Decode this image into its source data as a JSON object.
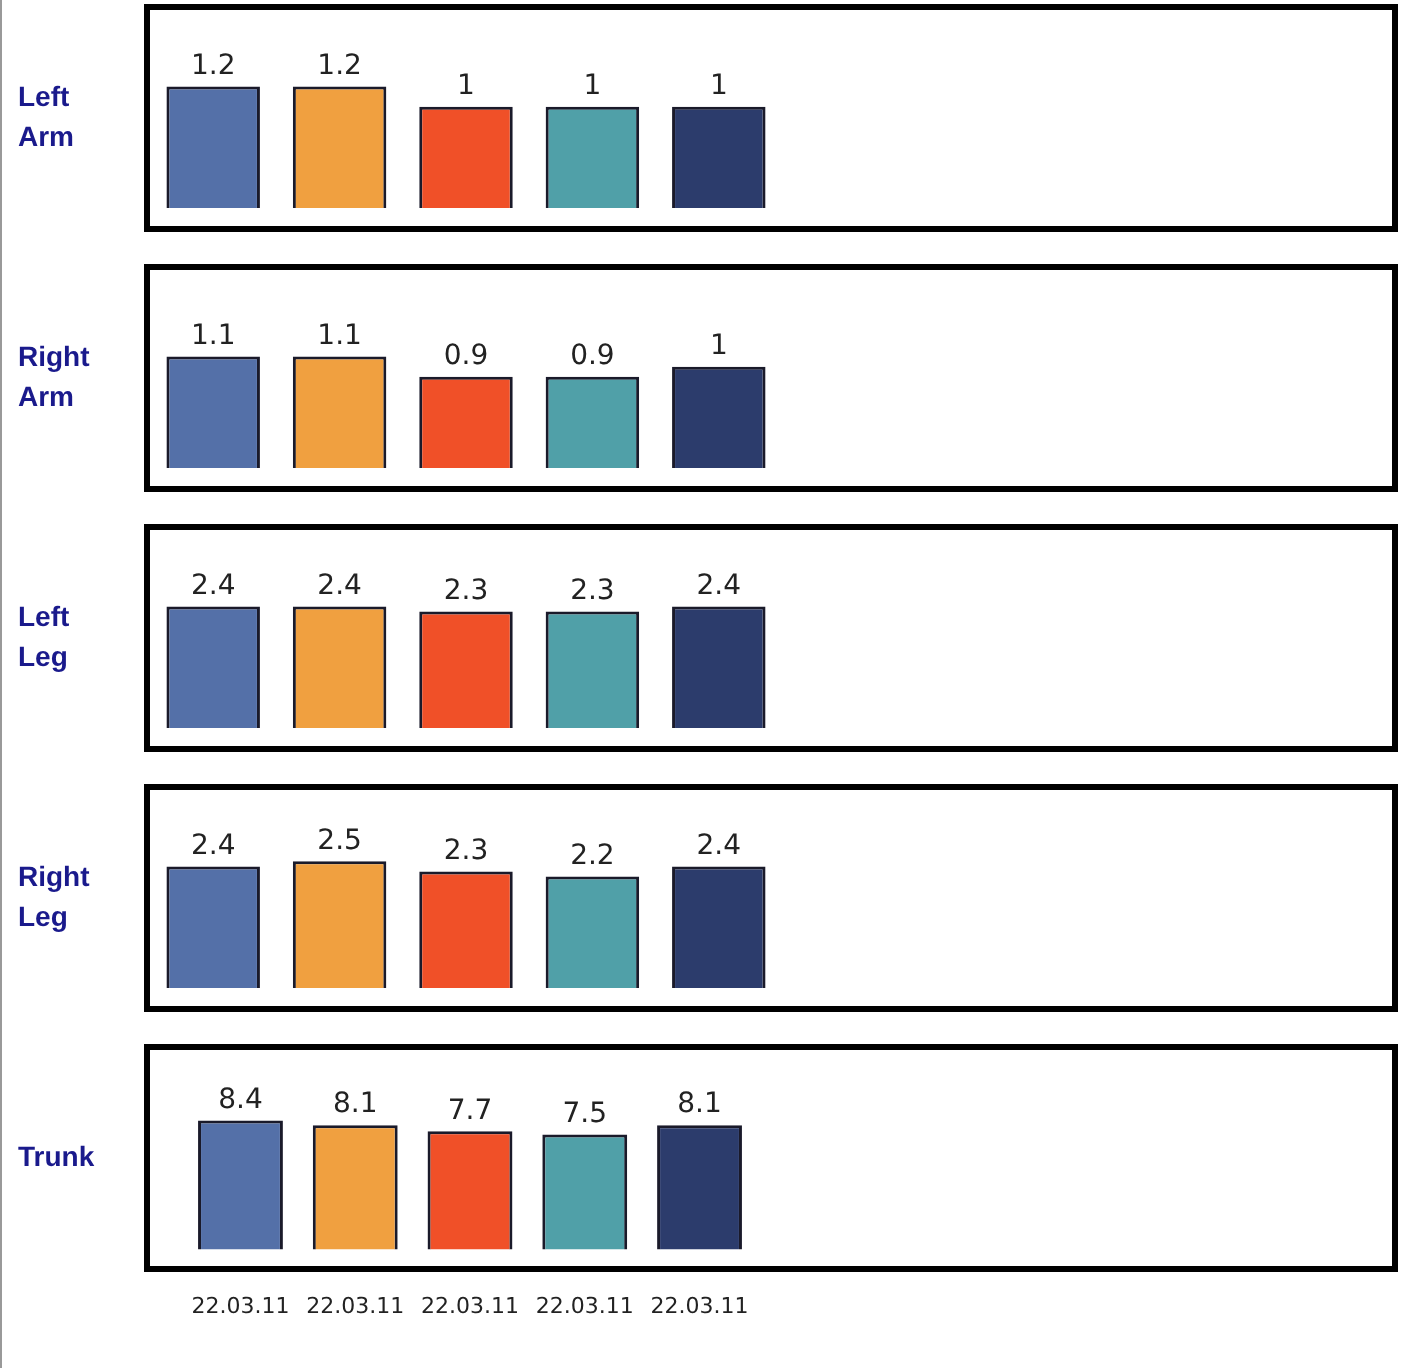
{
  "chart_data": [
    {
      "type": "bar",
      "ylabel": "Left Arm",
      "categories": [
        "22.03.11",
        "22.03.11",
        "22.03.11",
        "22.03.11",
        "22.03.11"
      ],
      "values": [
        1.2,
        1.2,
        1,
        1,
        1
      ],
      "colors": [
        "#5470a8",
        "#f0a040",
        "#f05028",
        "#50a0a8",
        "#2c3c6c"
      ],
      "data_labels": true,
      "tick_labels": false
    },
    {
      "type": "bar",
      "ylabel": "Right Arm",
      "categories": [
        "22.03.11",
        "22.03.11",
        "22.03.11",
        "22.03.11",
        "22.03.11"
      ],
      "values": [
        1.1,
        1.1,
        0.9,
        0.9,
        1
      ],
      "colors": [
        "#5470a8",
        "#f0a040",
        "#f05028",
        "#50a0a8",
        "#2c3c6c"
      ],
      "data_labels": true,
      "tick_labels": false
    },
    {
      "type": "bar",
      "ylabel": "Left Leg",
      "categories": [
        "22.03.11",
        "22.03.11",
        "22.03.11",
        "22.03.11",
        "22.03.11"
      ],
      "values": [
        2.4,
        2.4,
        2.3,
        2.3,
        2.4
      ],
      "colors": [
        "#5470a8",
        "#f0a040",
        "#f05028",
        "#50a0a8",
        "#2c3c6c"
      ],
      "data_labels": true,
      "tick_labels": false
    },
    {
      "type": "bar",
      "ylabel": "Right Leg",
      "categories": [
        "22.03.11",
        "22.03.11",
        "22.03.11",
        "22.03.11",
        "22.03.11"
      ],
      "values": [
        2.4,
        2.5,
        2.3,
        2.2,
        2.4
      ],
      "colors": [
        "#5470a8",
        "#f0a040",
        "#f05028",
        "#50a0a8",
        "#2c3c6c"
      ],
      "data_labels": true,
      "tick_labels": false
    },
    {
      "type": "bar",
      "ylabel": "Trunk",
      "categories": [
        "22.03.11",
        "22.03.11",
        "22.03.11",
        "22.03.11",
        "22.03.11"
      ],
      "values": [
        8.4,
        8.1,
        7.7,
        7.5,
        8.1
      ],
      "colors": [
        "#5470a8",
        "#f0a040",
        "#f05028",
        "#50a0a8",
        "#2c3c6c"
      ],
      "data_labels": true,
      "tick_labels": "x"
    }
  ]
}
